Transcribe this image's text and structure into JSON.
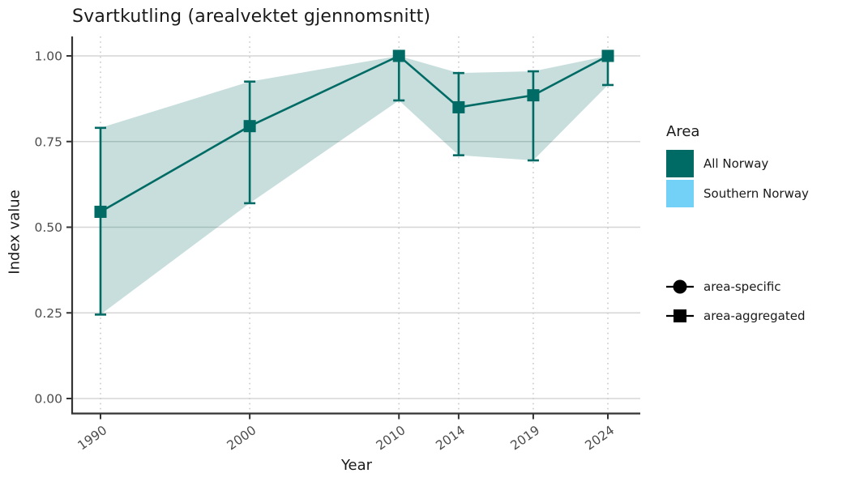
{
  "page": {
    "title": "Svartkutling (arealvektet gjennomsnitt)"
  },
  "chart_data": {
    "type": "line",
    "title": "Svartkutling (arealvektet gjennomsnitt)",
    "xlabel": "Year",
    "ylabel": "Index value",
    "x": [
      1990,
      2000,
      2010,
      2014,
      2019,
      2024
    ],
    "xtick_labels": [
      "1990",
      "2000",
      "2010",
      "2014",
      "2019",
      "2024"
    ],
    "yticks": [
      0.0,
      0.25,
      0.5,
      0.75,
      1.0
    ],
    "ytick_labels": [
      "0.00",
      "0.25",
      "0.50",
      "0.75",
      "1.00"
    ],
    "ylim": [
      -0.04,
      1.06
    ],
    "grid": {
      "horizontal": "solid",
      "vertical": "dotted"
    },
    "legend_position": "right",
    "series": [
      {
        "name": "All Norway",
        "aggregation": "area-aggregated",
        "marker": "square",
        "color": "#006A64",
        "values": [
          0.545,
          0.795,
          1.0,
          0.85,
          0.885,
          1.0
        ],
        "ci_lower": [
          0.245,
          0.57,
          0.87,
          0.71,
          0.695,
          0.915
        ],
        "ci_upper": [
          0.79,
          0.925,
          1.0,
          0.95,
          0.955,
          1.0
        ]
      }
    ],
    "ribbon_opacity": 0.22
  },
  "legend": {
    "area": {
      "title": "Area",
      "items": [
        {
          "label": "All Norway",
          "color": "#006A64"
        },
        {
          "label": "Southern Norway",
          "color": "#73D1F8"
        }
      ]
    },
    "shapes": {
      "items": [
        {
          "label": "area-specific",
          "shape": "circle"
        },
        {
          "label": "area-aggregated",
          "shape": "square"
        }
      ]
    }
  },
  "colors": {
    "accent_teal": "#006A64",
    "accent_lightblue": "#73D1F8",
    "grid": "#D5D5D5",
    "grid_dotted": "#C9C9C9",
    "axis": "#333333",
    "tick_text": "#4D4D4D",
    "marker_black": "#000000",
    "background": "#FFFFFF"
  }
}
